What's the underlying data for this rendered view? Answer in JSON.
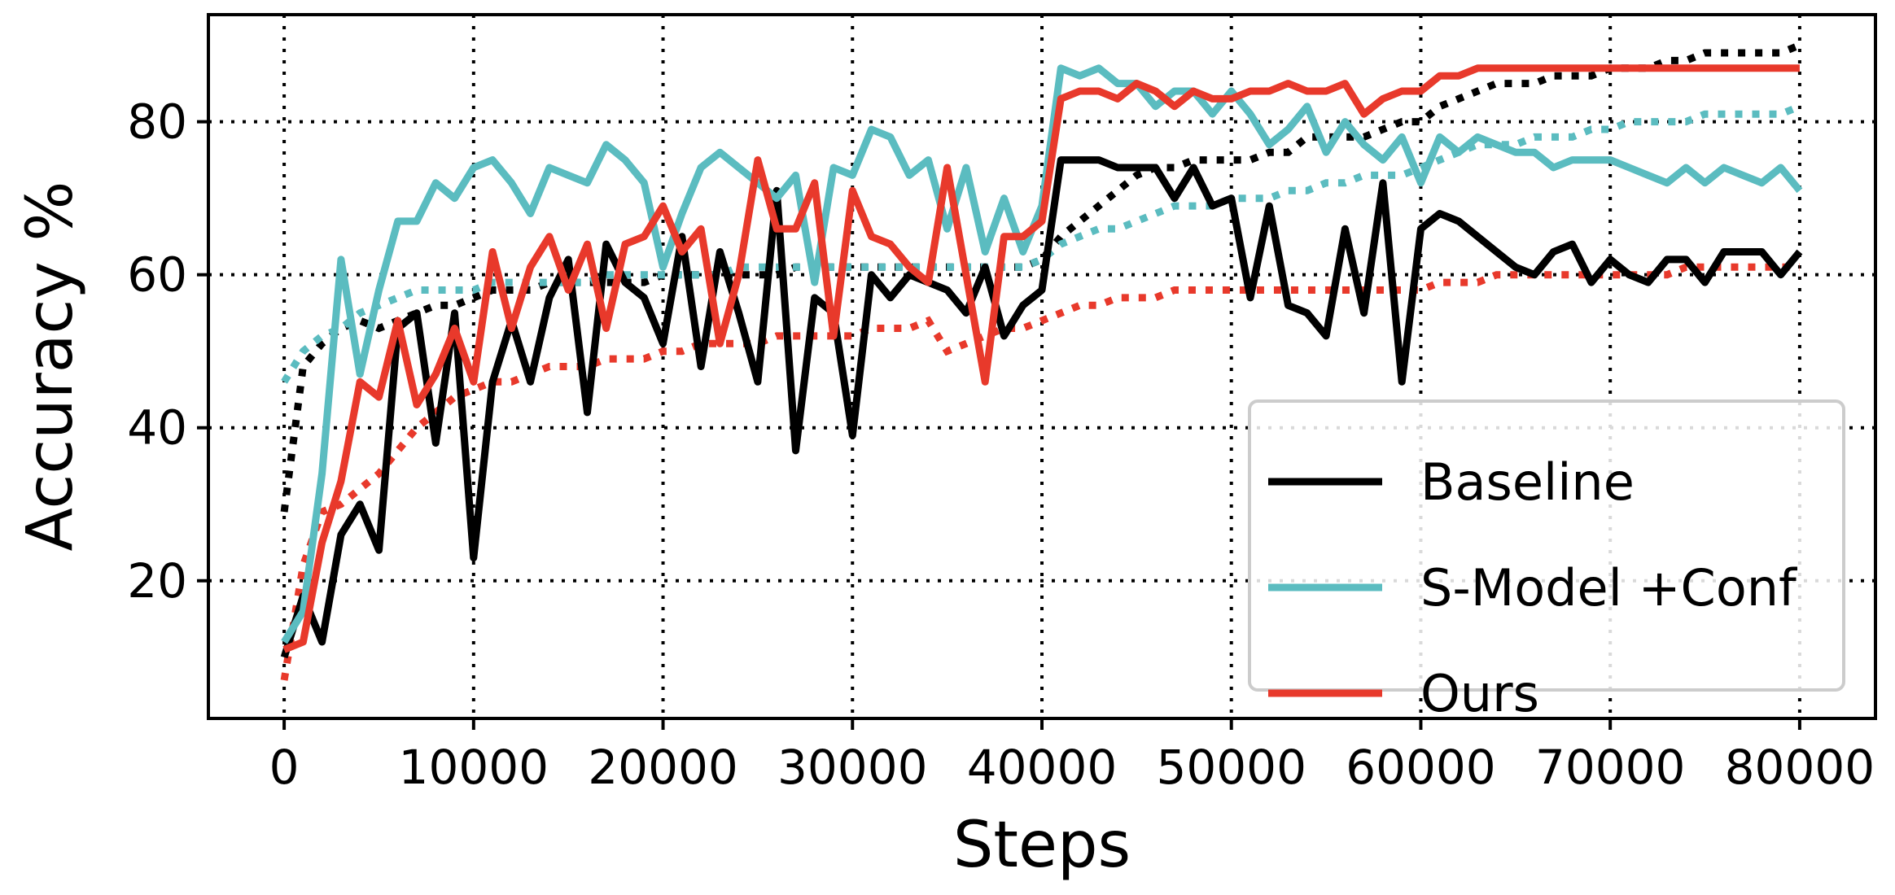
{
  "chart_data": {
    "type": "line",
    "title": "",
    "xlabel": "Steps",
    "ylabel": "Accuracy %",
    "xlim": [
      -4000,
      84000
    ],
    "ylim": [
      2,
      94
    ],
    "xticks": [
      0,
      10000,
      20000,
      30000,
      40000,
      50000,
      60000,
      70000,
      80000
    ],
    "xtick_labels": [
      "0",
      "10000",
      "20000",
      "30000",
      "40000",
      "50000",
      "60000",
      "70000",
      "80000"
    ],
    "yticks": [
      20,
      40,
      60,
      80
    ],
    "ytick_labels": [
      "20",
      "40",
      "60",
      "80"
    ],
    "grid": true,
    "legend_position": "lower-right",
    "x_step": 1000,
    "colors": {
      "Baseline": "#000000",
      "S-Model +Conf": "#5bbcc0",
      "Ours": "#e8392b"
    },
    "series": [
      {
        "name": "Baseline",
        "style": "solid",
        "values": [
          10,
          18,
          12,
          26,
          30,
          24,
          53,
          55,
          38,
          55,
          23,
          46,
          54,
          46,
          57,
          62,
          42,
          64,
          59,
          57,
          51,
          65,
          48,
          63,
          55,
          46,
          71,
          37,
          57,
          55,
          39,
          60,
          57,
          60,
          59,
          58,
          55,
          61,
          52,
          56,
          58,
          75,
          75,
          75,
          74,
          74,
          74,
          70,
          74,
          69,
          70,
          57,
          69,
          56,
          55,
          52,
          66,
          55,
          72,
          46,
          66,
          68,
          67,
          65,
          63,
          61,
          60,
          63,
          64,
          59,
          62,
          60,
          59,
          62,
          62,
          59,
          63,
          63,
          63,
          60,
          63
        ]
      },
      {
        "name": "Baseline",
        "style": "dotted",
        "values": [
          29,
          48,
          51,
          53,
          54,
          53,
          54,
          55,
          56,
          56,
          57,
          58,
          58,
          58,
          59,
          59,
          59,
          59,
          59,
          59,
          60,
          60,
          60,
          60,
          60,
          60,
          60,
          61,
          61,
          61,
          61,
          61,
          61,
          61,
          61,
          61,
          61,
          61,
          61,
          61,
          62,
          65,
          67,
          69,
          71,
          73,
          74,
          74,
          75,
          75,
          75,
          75,
          76,
          76,
          78,
          78,
          78,
          78,
          79,
          80,
          80,
          82,
          83,
          84,
          85,
          85,
          85,
          86,
          86,
          86,
          87,
          87,
          87,
          88,
          88,
          89,
          89,
          89,
          89,
          89,
          90
        ]
      },
      {
        "name": "S-Model +Conf",
        "style": "solid",
        "values": [
          12,
          16,
          34,
          62,
          47,
          58,
          67,
          67,
          72,
          70,
          74,
          75,
          72,
          68,
          74,
          73,
          72,
          77,
          75,
          72,
          61,
          68,
          74,
          76,
          74,
          72,
          70,
          73,
          59,
          74,
          73,
          79,
          78,
          73,
          75,
          66,
          74,
          63,
          70,
          63,
          69,
          87,
          86,
          87,
          85,
          85,
          82,
          84,
          84,
          81,
          84,
          81,
          77,
          79,
          82,
          76,
          80,
          77,
          75,
          78,
          72,
          78,
          76,
          78,
          77,
          76,
          76,
          74,
          75,
          75,
          75,
          74,
          73,
          72,
          74,
          72,
          74,
          73,
          72,
          74,
          71
        ]
      },
      {
        "name": "S-Model +Conf",
        "style": "dotted",
        "values": [
          46,
          50,
          52,
          53,
          55,
          56,
          57,
          58,
          58,
          58,
          58,
          59,
          59,
          59,
          59,
          59,
          59,
          60,
          60,
          60,
          60,
          60,
          60,
          60,
          61,
          61,
          61,
          61,
          61,
          61,
          61,
          61,
          61,
          61,
          61,
          61,
          61,
          61,
          61,
          61,
          62,
          64,
          65,
          66,
          66,
          67,
          68,
          69,
          69,
          69,
          70,
          70,
          70,
          71,
          71,
          72,
          72,
          73,
          73,
          73,
          74,
          75,
          76,
          77,
          77,
          77,
          78,
          78,
          78,
          79,
          79,
          80,
          80,
          80,
          80,
          81,
          81,
          81,
          81,
          81,
          82
        ]
      },
      {
        "name": "Ours",
        "style": "solid",
        "values": [
          11,
          12,
          25,
          33,
          46,
          44,
          54,
          43,
          47,
          53,
          46,
          63,
          53,
          61,
          65,
          58,
          64,
          53,
          64,
          65,
          69,
          63,
          66,
          51,
          60,
          75,
          66,
          66,
          72,
          52,
          71,
          65,
          64,
          61,
          59,
          74,
          60,
          46,
          65,
          65,
          67,
          83,
          84,
          84,
          83,
          85,
          84,
          82,
          84,
          83,
          83,
          84,
          84,
          85,
          84,
          84,
          85,
          81,
          83,
          84,
          84,
          86,
          86,
          87,
          87,
          87,
          87,
          87,
          87,
          87,
          87,
          87,
          87,
          87,
          87,
          87,
          87,
          87,
          87,
          87,
          87
        ]
      },
      {
        "name": "Ours",
        "style": "dotted",
        "values": [
          7,
          22,
          29,
          30,
          32,
          34,
          37,
          40,
          42,
          44,
          45,
          46,
          46,
          47,
          48,
          48,
          48,
          49,
          49,
          49,
          50,
          50,
          51,
          51,
          51,
          51,
          52,
          52,
          52,
          52,
          52,
          53,
          53,
          53,
          54,
          50,
          51,
          52,
          53,
          53,
          54,
          55,
          56,
          56,
          57,
          57,
          57,
          58,
          58,
          58,
          58,
          58,
          58,
          58,
          58,
          58,
          58,
          58,
          58,
          58,
          58,
          59,
          59,
          59,
          60,
          60,
          60,
          60,
          60,
          60,
          60,
          60,
          60,
          60,
          61,
          61,
          61,
          61,
          61,
          61,
          61
        ]
      }
    ],
    "legend": [
      {
        "label": "Baseline",
        "color": "#000000"
      },
      {
        "label": "S-Model +Conf",
        "color": "#5bbcc0"
      },
      {
        "label": "Ours",
        "color": "#e8392b"
      }
    ]
  }
}
